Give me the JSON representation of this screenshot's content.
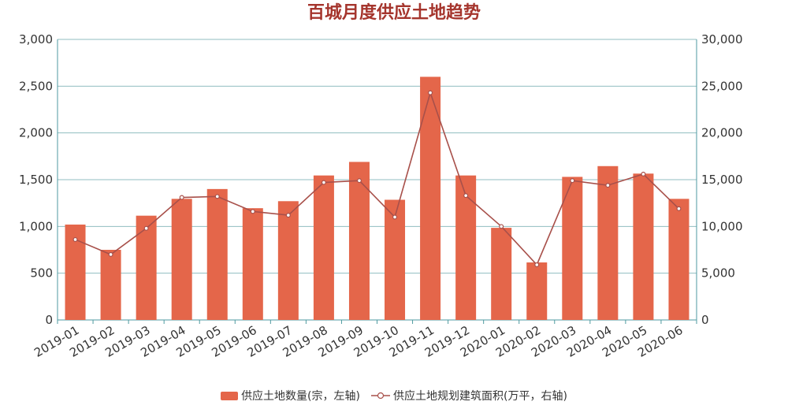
{
  "chart_data": {
    "type": "bar",
    "title": "百城月度供应土地趋势",
    "categories": [
      "2019-01",
      "2019-02",
      "2019-03",
      "2019-04",
      "2019-05",
      "2019-06",
      "2019-07",
      "2019-08",
      "2019-09",
      "2019-10",
      "2019-11",
      "2019-12",
      "2020-01",
      "2020-02",
      "2020-03",
      "2020-04",
      "2020-05",
      "2020-06"
    ],
    "series": [
      {
        "name": "供应土地数量(宗，左轴)",
        "type": "bar",
        "axis": "left",
        "values": [
          1020,
          750,
          1115,
          1295,
          1400,
          1195,
          1270,
          1545,
          1690,
          1285,
          2600,
          1545,
          985,
          615,
          1530,
          1645,
          1565,
          1295
        ]
      },
      {
        "name": "供应土地规划建筑面积(万平，右轴)",
        "type": "line",
        "axis": "right",
        "values": [
          8600,
          7000,
          9800,
          13100,
          13200,
          11600,
          11200,
          14700,
          14900,
          11000,
          24300,
          13300,
          10000,
          5900,
          14900,
          14400,
          15600,
          11900
        ]
      }
    ],
    "y_left": {
      "min": 0,
      "max": 3000,
      "ticks": [
        "0",
        "500",
        "1,000",
        "1,500",
        "2,000",
        "2,500",
        "3,000"
      ]
    },
    "y_right": {
      "min": 0,
      "max": 30000,
      "ticks": [
        "0",
        "5,000",
        "10,000",
        "15,000",
        "20,000",
        "25,000",
        "30,000"
      ]
    },
    "grid": true,
    "legend_position": "bottom",
    "colors": {
      "bar": "#e4664a",
      "line": "#a8504a",
      "title": "#a5352d",
      "axis": "#4e9aa0",
      "grid": "#6ba7ab"
    }
  }
}
